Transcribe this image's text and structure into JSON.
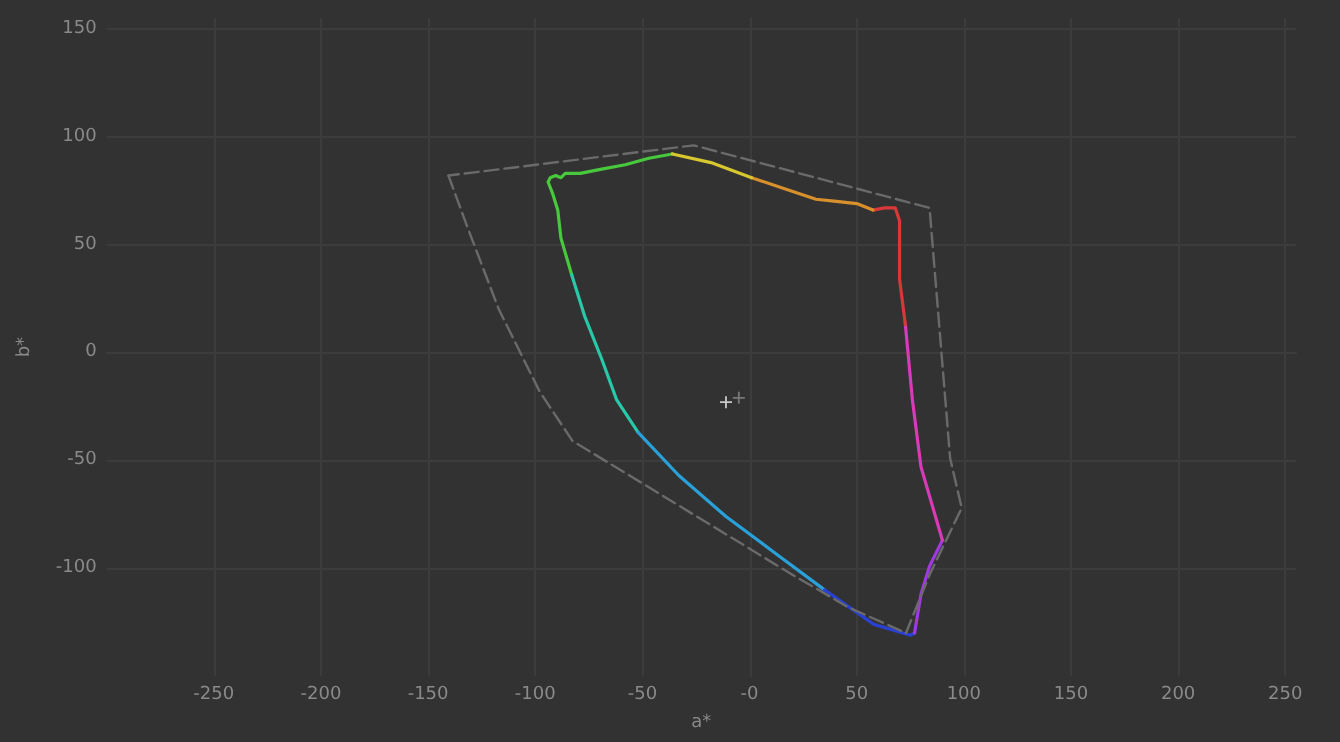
{
  "chart_data": {
    "type": "line",
    "xlabel": "a*",
    "ylabel": "b*",
    "xlim": [
      -300,
      255
    ],
    "ylim": [
      -150,
      155
    ],
    "xticks": [
      -250,
      -200,
      -150,
      -100,
      -50,
      {
        "value": 0,
        "label": "-0"
      },
      50,
      100,
      150,
      200,
      250
    ],
    "yticks": [
      -100,
      -50,
      0,
      50,
      100,
      150
    ],
    "grid": true,
    "series": [
      {
        "color": "#48c83c",
        "line_style": "solid",
        "marker": "none",
        "x": [
          -36,
          -47,
          -58,
          -69,
          -79,
          -86,
          -88,
          -90.5,
          -93,
          -94,
          -92,
          -89.5,
          -88,
          -83
        ],
        "values": [
          92,
          90,
          87,
          85,
          83,
          83,
          81,
          82,
          81,
          79,
          74,
          66,
          53,
          36
        ]
      },
      {
        "color": "#28c9a8",
        "line_style": "solid",
        "marker": "none",
        "x": [
          -83,
          -77,
          -69,
          -62,
          -52
        ],
        "values": [
          36,
          17,
          -3,
          -22,
          -37
        ]
      },
      {
        "color": "#2aa0d8",
        "line_style": "solid",
        "marker": "none",
        "x": [
          -52,
          -33,
          -11,
          12,
          35
        ],
        "values": [
          -37,
          -57,
          -76,
          -93,
          -110
        ]
      },
      {
        "color": "#2a40d0",
        "line_style": "solid",
        "marker": "none",
        "x": [
          35,
          58,
          75,
          77
        ],
        "values": [
          -110,
          -126,
          -131,
          -130
        ]
      },
      {
        "color": "#a03ae0",
        "line_style": "solid",
        "marker": "none",
        "x": [
          77,
          80,
          84,
          90
        ],
        "values": [
          -130,
          -112,
          -99,
          -87
        ]
      },
      {
        "color": "#d83ab8",
        "line_style": "solid",
        "marker": "none",
        "x": [
          90,
          80,
          76,
          72.7
        ],
        "values": [
          -87,
          -53,
          -22,
          13
        ]
      },
      {
        "color": "#d83838",
        "line_style": "solid",
        "marker": "none",
        "x": [
          72.7,
          70,
          70,
          68,
          63,
          57.6
        ],
        "values": [
          13,
          34,
          61,
          67,
          67,
          66
        ]
      },
      {
        "color": "#d8902c",
        "line_style": "solid",
        "marker": "none",
        "x": [
          57.6,
          50,
          40.5,
          31,
          16,
          1
        ],
        "values": [
          66,
          69,
          70,
          71,
          76,
          81
        ]
      },
      {
        "color": "#d8c830",
        "line_style": "solid",
        "marker": "none",
        "x": [
          1,
          -18,
          -36
        ],
        "values": [
          81,
          88,
          92
        ]
      },
      {
        "color": "#6a6a6a",
        "line_style": "dashed",
        "marker": "none",
        "x": [
          -140.5,
          -132,
          -117,
          -98,
          -82.6,
          -56,
          -18,
          20,
          46,
          73
        ],
        "values": [
          82,
          59,
          20,
          -18,
          -41,
          -57,
          -80,
          -103,
          -118,
          -130
        ]
      },
      {
        "color": "#6a6a6a",
        "line_style": "dashed",
        "marker": "none",
        "x": [
          73,
          84,
          99,
          93.6,
          84,
          -26,
          -140.5
        ],
        "values": [
          -130,
          -103,
          -72,
          -49,
          67,
          96,
          82
        ]
      },
      {
        "type": "scatter",
        "color": "#eeeeee",
        "marker": "cross",
        "x": [
          -11
        ],
        "values": [
          -23
        ]
      },
      {
        "type": "scatter",
        "color": "#8a8a8a",
        "marker": "cross",
        "x": [
          -5
        ],
        "values": [
          -21
        ]
      }
    ]
  }
}
